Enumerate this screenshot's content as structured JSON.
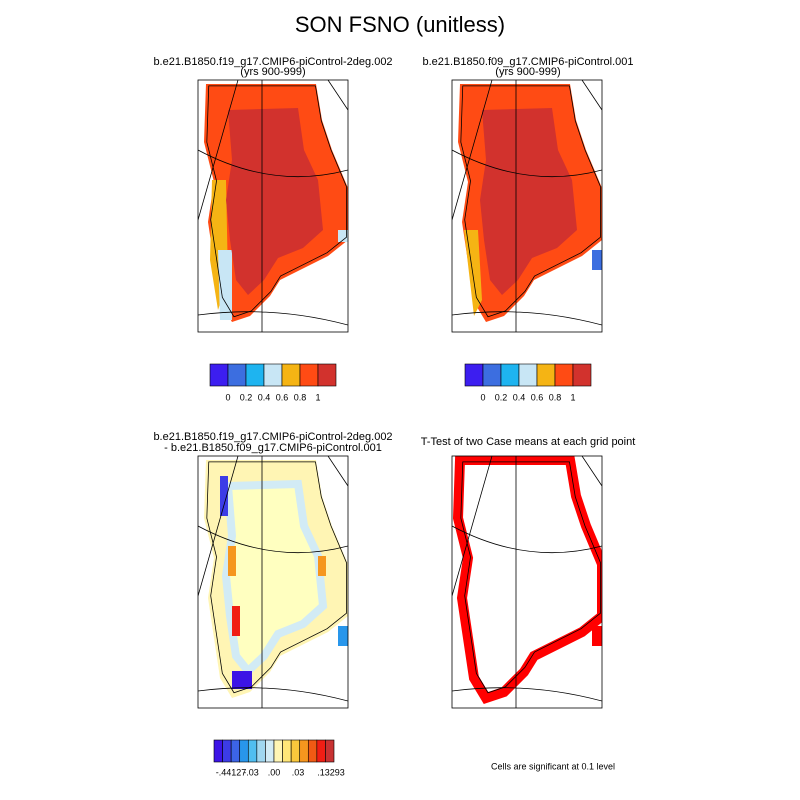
{
  "title": "SON FSNO (unitless)",
  "panels": [
    {
      "title": [
        "b.e21.B1850.f19_g17.CMIP6-piControl-2deg.002",
        "(yrs 900-999)"
      ]
    },
    {
      "title": [
        "b.e21.B1850.f09_g17.CMIP6-piControl.001",
        "(yrs 900-999)"
      ]
    },
    {
      "title": [
        "b.e21.B1850.f19_g17.CMIP6-piControl-2deg.002",
        "- b.e21.B1850.f09_g17.CMIP6-piControl.001"
      ]
    },
    {
      "title": [
        "T-Test of two Case means at each grid point"
      ]
    }
  ],
  "colorbars": [
    {
      "colors": [
        "#3c1ef0",
        "#3c6ee0",
        "#1eb4f0",
        "#c8e6f5",
        "#f5b414",
        "#ff4b14",
        "#d2322d"
      ],
      "labels": [
        "0",
        "0.2",
        "0.4",
        "0.6",
        "0.8",
        "1"
      ]
    },
    {
      "colors": [
        "#3c1ef0",
        "#3c6ee0",
        "#1eb4f0",
        "#c8e6f5",
        "#f5b414",
        "#ff4b14",
        "#d2322d"
      ],
      "labels": [
        "0",
        "0.2",
        "0.4",
        "0.6",
        "0.8",
        "1"
      ]
    },
    {
      "colors": [
        "#3c14e6",
        "#3c3ce6",
        "#3c64e6",
        "#2896eb",
        "#50bef0",
        "#a0d7f0",
        "#d2ebf5",
        "#fff5b4",
        "#ffe678",
        "#fac83c",
        "#f5961e",
        "#f05a14",
        "#f01e14",
        "#c83232"
      ],
      "labels": [
        "-.44127",
        "-.03",
        ".00",
        ".03",
        ".13293"
      ]
    }
  ],
  "footnote": "Cells are significant at 0.1 level"
}
